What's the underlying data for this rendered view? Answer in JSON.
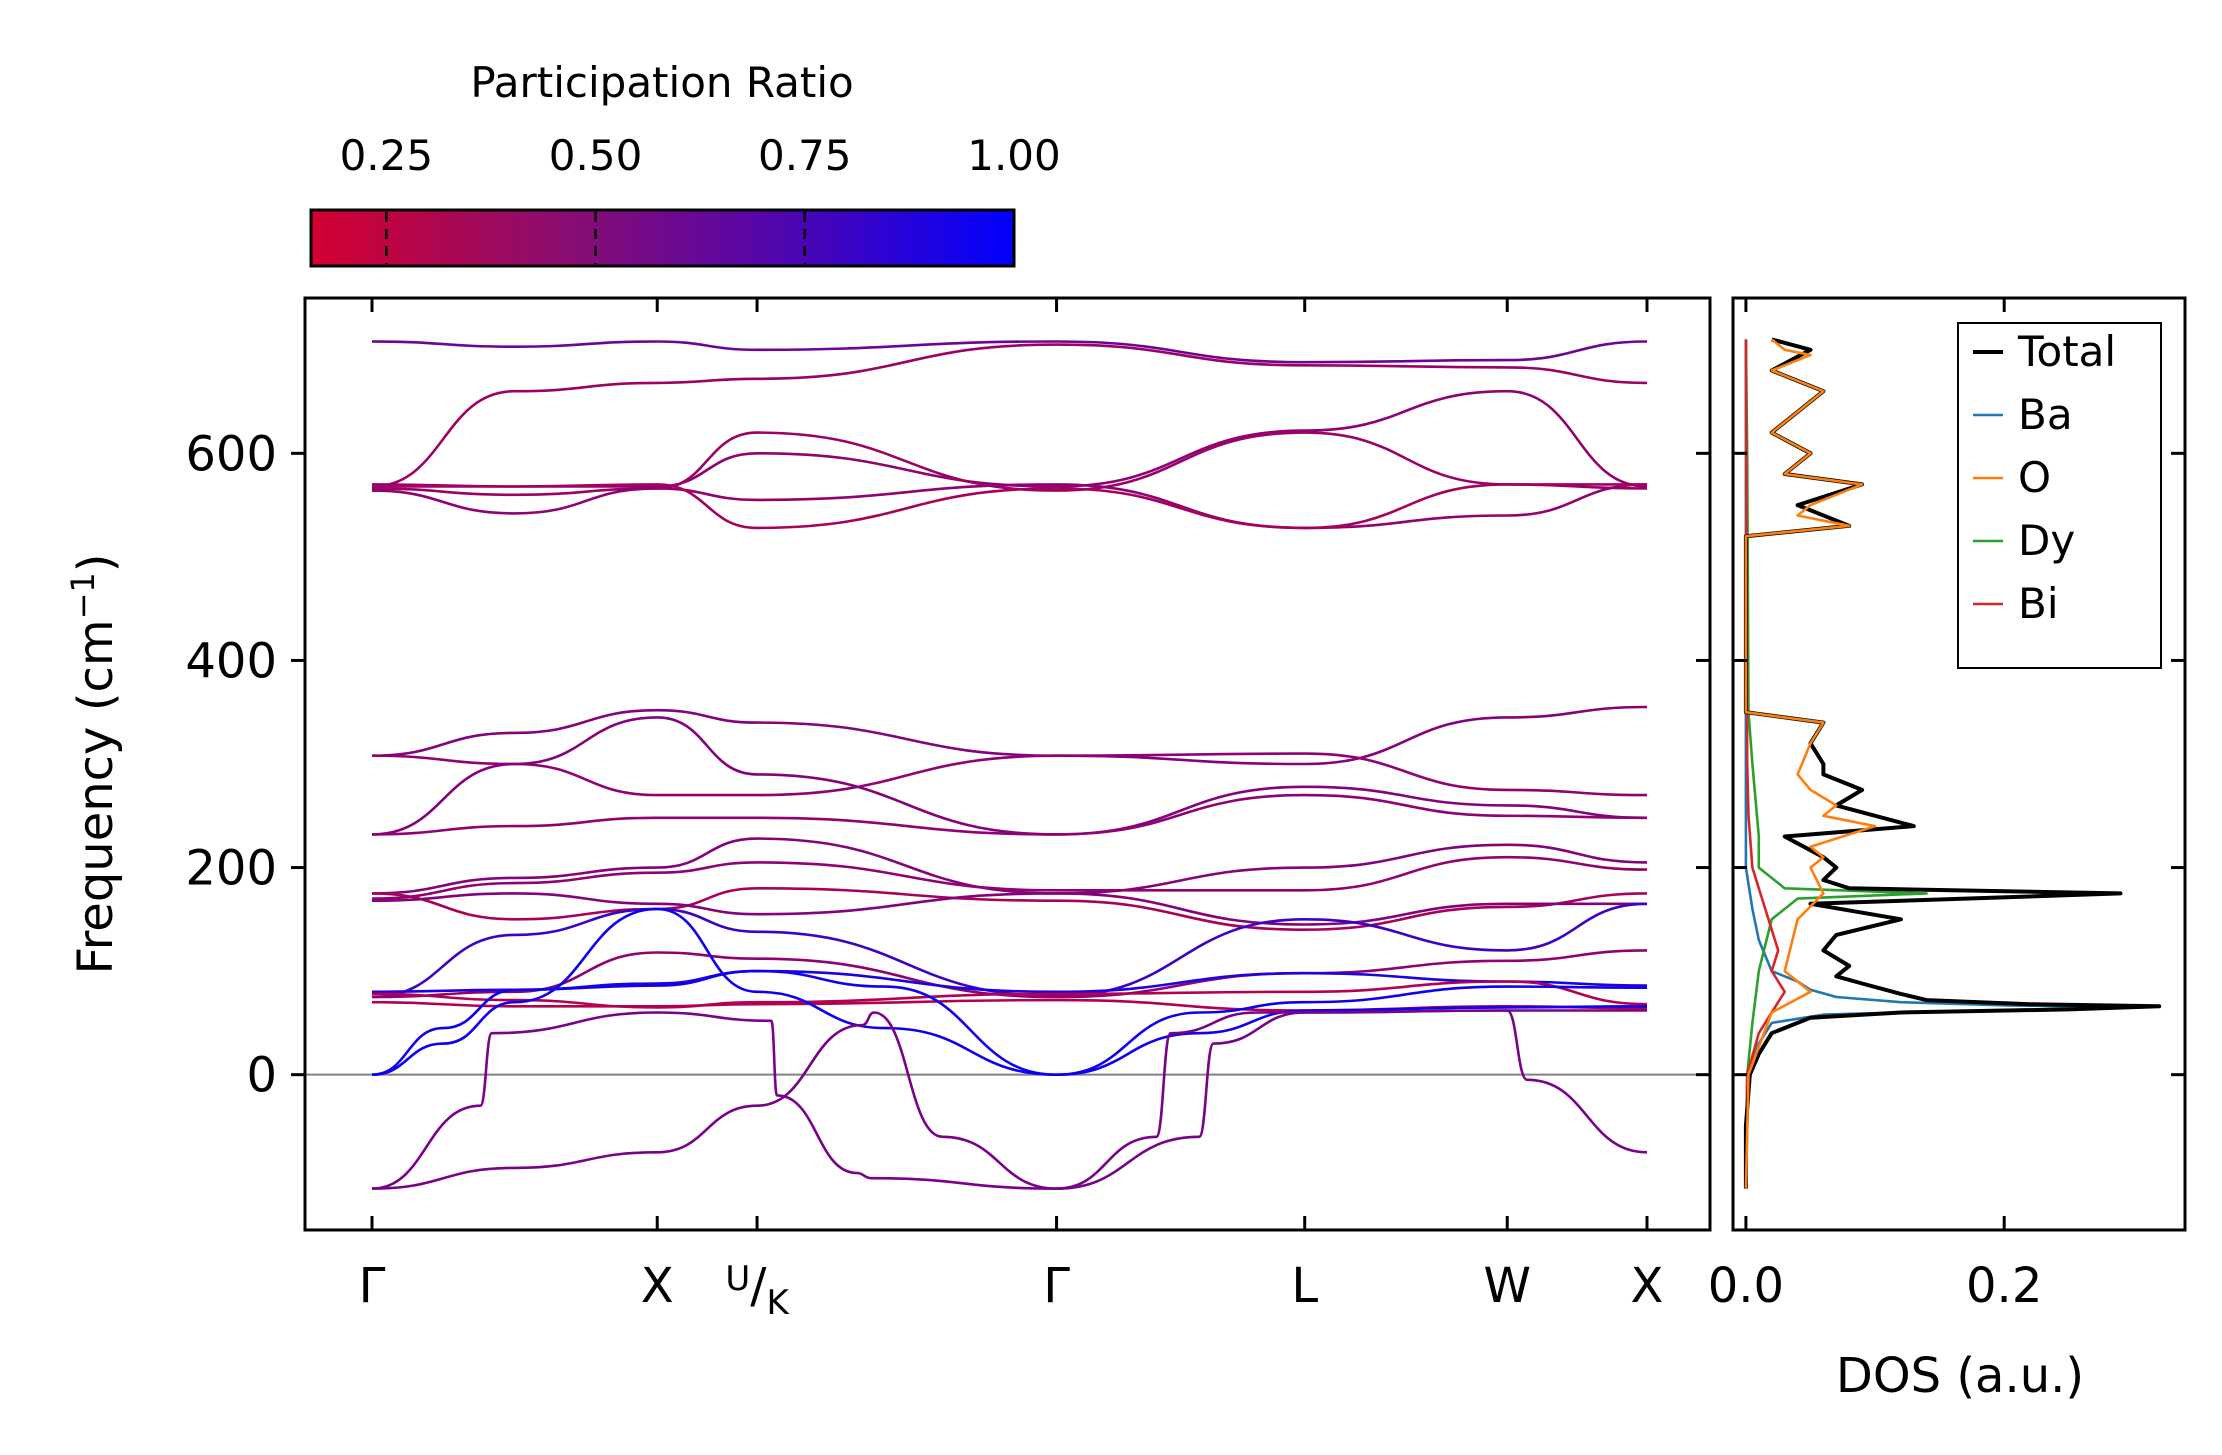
{
  "chart_data": [
    {
      "type": "line",
      "panel": "phonon-band-structure",
      "ylabel": "Frequency (cm",
      "ylabel_sup": "−1",
      "ylabel_close": ")",
      "ylim": [
        -150,
        750
      ],
      "yticks": [
        0,
        200,
        400,
        600
      ],
      "ytick_labels": [
        "0",
        "200",
        "400",
        "600"
      ],
      "xlim": [
        0,
        4.47
      ],
      "kpoint_positions": [
        0,
        1.0,
        1.35,
        2.4,
        3.27,
        3.98,
        4.47
      ],
      "kpoint_labels": [
        "Γ",
        "X",
        "U",
        "K",
        "Γ",
        "L",
        "W",
        "X"
      ],
      "kpoint_display": [
        {
          "pos": 0,
          "label": "Γ"
        },
        {
          "pos": 1.0,
          "label": "X"
        },
        {
          "pos": 1.35,
          "label": "U/K"
        },
        {
          "pos": 2.4,
          "label": "Γ"
        },
        {
          "pos": 3.27,
          "label": "L"
        },
        {
          "pos": 3.98,
          "label": "W"
        },
        {
          "pos": 4.47,
          "label": "X"
        }
      ],
      "colorbar": {
        "title": "Participation Ratio",
        "range": [
          0.16,
          1.0
        ],
        "ticks": [
          0.25,
          0.5,
          0.75,
          1.0
        ],
        "tick_labels": [
          "0.25",
          "0.50",
          "0.75",
          "1.00"
        ],
        "color_low": "#d40030",
        "color_high": "#0000ff"
      },
      "bands": [
        {
          "x": [
            0,
            0.5,
            1.0,
            1.35,
            2.4,
            3.27,
            3.98,
            4.47
          ],
          "y": [
            708,
            703,
            708,
            700,
            708,
            688,
            690,
            708
          ],
          "pr": 0.6
        },
        {
          "x": [
            0,
            0.5,
            1.0,
            1.35,
            2.4,
            3.27,
            3.98,
            4.47
          ],
          "y": [
            568,
            660,
            668,
            672,
            705,
            685,
            683,
            668
          ],
          "pr": 0.4
        },
        {
          "x": [
            0,
            0.5,
            1.0,
            1.35,
            2.4,
            3.27,
            3.98,
            4.47
          ],
          "y": [
            570,
            568,
            568,
            600,
            568,
            622,
            660,
            568
          ],
          "pr": 0.45
        },
        {
          "x": [
            0,
            0.5,
            1.0,
            1.35,
            2.4,
            3.27,
            3.98,
            4.47
          ],
          "y": [
            566,
            560,
            566,
            620,
            564,
            620,
            570,
            566
          ],
          "pr": 0.4
        },
        {
          "x": [
            0,
            0.5,
            1.0,
            1.35,
            2.4,
            3.27,
            3.98,
            4.47
          ],
          "y": [
            564,
            542,
            566,
            555,
            570,
            528,
            540,
            570
          ],
          "pr": 0.45
        },
        {
          "x": [
            0,
            0.5,
            1.0,
            1.35,
            2.4,
            3.27,
            3.98,
            4.47
          ],
          "y": [
            568,
            568,
            570,
            528,
            566,
            528,
            570,
            570
          ],
          "pr": 0.35
        },
        {
          "x": [
            0,
            0.5,
            1.0,
            1.35,
            2.4,
            3.27,
            3.98,
            4.47
          ],
          "y": [
            308,
            330,
            352,
            340,
            308,
            300,
            345,
            355
          ],
          "pr": 0.5
        },
        {
          "x": [
            0,
            0.5,
            1.0,
            1.35,
            2.4,
            3.27,
            3.98,
            4.47
          ],
          "y": [
            308,
            300,
            270,
            270,
            308,
            310,
            275,
            270
          ],
          "pr": 0.45
        },
        {
          "x": [
            0,
            0.5,
            1.0,
            1.35,
            2.4,
            3.27,
            3.98,
            4.47
          ],
          "y": [
            232,
            300,
            345,
            290,
            232,
            278,
            260,
            248
          ],
          "pr": 0.5
        },
        {
          "x": [
            0,
            0.5,
            1.0,
            1.35,
            2.4,
            3.27,
            3.98,
            4.47
          ],
          "y": [
            232,
            240,
            248,
            248,
            232,
            270,
            250,
            248
          ],
          "pr": 0.45
        },
        {
          "x": [
            0,
            0.5,
            1.0,
            1.35,
            2.4,
            3.27,
            3.98,
            4.47
          ],
          "y": [
            175,
            190,
            200,
            228,
            175,
            200,
            222,
            205
          ],
          "pr": 0.5
        },
        {
          "x": [
            0,
            0.5,
            1.0,
            1.35,
            2.4,
            3.27,
            3.98,
            4.47
          ],
          "y": [
            170,
            185,
            195,
            205,
            178,
            178,
            210,
            198
          ],
          "pr": 0.45
        },
        {
          "x": [
            0,
            0.5,
            1.0,
            1.35,
            2.4,
            3.27,
            3.98,
            4.47
          ],
          "y": [
            175,
            150,
            160,
            180,
            168,
            140,
            162,
            175
          ],
          "pr": 0.35
        },
        {
          "x": [
            0,
            0.5,
            1.0,
            1.35,
            2.4,
            3.27,
            3.98,
            4.47
          ],
          "y": [
            168,
            175,
            165,
            155,
            175,
            145,
            165,
            165
          ],
          "pr": 0.5
        },
        {
          "x": [
            0,
            0.5,
            1.0,
            1.35,
            2.4,
            3.27,
            3.98,
            4.47
          ],
          "y": [
            75,
            135,
            160,
            138,
            76,
            150,
            120,
            165
          ],
          "pr": 0.8
        },
        {
          "x": [
            0,
            0.5,
            1.0,
            1.35,
            2.4,
            3.27,
            3.98,
            4.47
          ],
          "y": [
            75,
            80,
            118,
            112,
            75,
            98,
            110,
            120
          ],
          "pr": 0.45
        },
        {
          "x": [
            0,
            0.5,
            1.0,
            1.35,
            2.4,
            3.27,
            3.98,
            4.47
          ],
          "y": [
            80,
            82,
            88,
            100,
            80,
            98,
            90,
            86
          ],
          "pr": 0.9
        },
        {
          "x": [
            0,
            0.5,
            1.0,
            1.35,
            2.4,
            3.27,
            3.98,
            4.47
          ],
          "y": [
            78,
            72,
            65,
            70,
            78,
            80,
            90,
            68
          ],
          "pr": 0.3
        },
        {
          "x": [
            0,
            0.5,
            1.0,
            1.35,
            2.4,
            3.27,
            3.98,
            4.47
          ],
          "y": [
            70,
            66,
            66,
            68,
            72,
            62,
            66,
            64
          ],
          "pr": 0.3
        },
        {
          "x": [
            0,
            0.25,
            0.5,
            1.0,
            1.35,
            1.8,
            2.4,
            2.9,
            3.27,
            3.98,
            4.47
          ],
          "y": [
            0,
            45,
            82,
            86,
            100,
            85,
            0,
            60,
            70,
            85,
            84
          ],
          "pr": 0.95
        },
        {
          "x": [
            0,
            0.25,
            0.5,
            1.0,
            1.35,
            1.8,
            2.4,
            2.9,
            3.27,
            3.98,
            4.47
          ],
          "y": [
            0,
            30,
            70,
            160,
            80,
            45,
            0,
            40,
            62,
            65,
            66
          ],
          "pr": 0.95
        },
        {
          "x": [
            0,
            0.38,
            0.42,
            1.0,
            1.4,
            1.42,
            1.7,
            1.75,
            2.4,
            2.9,
            2.95,
            3.27,
            3.98,
            4.05,
            4.47
          ],
          "y": [
            -110,
            -30,
            40,
            60,
            52,
            -20,
            -95,
            -100,
            -110,
            -60,
            30,
            60,
            62,
            -5,
            -75
          ],
          "pr": 0.55
        },
        {
          "x": [
            0,
            0.5,
            1.0,
            1.35,
            1.72,
            1.76,
            2.0,
            2.4,
            2.75,
            2.8,
            3.1,
            3.27,
            3.98,
            4.47
          ],
          "y": [
            -110,
            -90,
            -75,
            -30,
            48,
            60,
            -60,
            -110,
            -60,
            40,
            60,
            60,
            62,
            62
          ],
          "pr": 0.55
        }
      ]
    },
    {
      "type": "line",
      "panel": "density-of-states",
      "xlabel": "DOS (a.u.)",
      "xlim": [
        -0.01,
        0.34
      ],
      "xticks": [
        0.0,
        0.2
      ],
      "xtick_labels": [
        "0.0",
        "0.2"
      ],
      "ylim": [
        -150,
        750
      ],
      "legend_position": "top-right",
      "series": [
        {
          "name": "Total",
          "color": "#000000",
          "freq": [
            -110,
            -50,
            0,
            20,
            40,
            55,
            60,
            63,
            66,
            68,
            72,
            78,
            88,
            95,
            105,
            120,
            135,
            150,
            165,
            175,
            180,
            188,
            200,
            210,
            230,
            240,
            260,
            275,
            290,
            300,
            320,
            340,
            350,
            360,
            520,
            530,
            550,
            570,
            580,
            600,
            620,
            660,
            680,
            700,
            710
          ],
          "dos": [
            0.0,
            0.0,
            0.003,
            0.01,
            0.02,
            0.05,
            0.12,
            0.25,
            0.32,
            0.22,
            0.14,
            0.12,
            0.09,
            0.07,
            0.08,
            0.06,
            0.07,
            0.12,
            0.05,
            0.29,
            0.08,
            0.06,
            0.07,
            0.06,
            0.03,
            0.13,
            0.07,
            0.09,
            0.06,
            0.06,
            0.05,
            0.06,
            0.0,
            0.0,
            0.0,
            0.08,
            0.04,
            0.09,
            0.03,
            0.05,
            0.02,
            0.06,
            0.02,
            0.05,
            0.02
          ]
        },
        {
          "name": "Ba",
          "color": "#1f77b4",
          "freq": [
            -110,
            0,
            30,
            50,
            58,
            62,
            65,
            67,
            70,
            75,
            82,
            90,
            100,
            130,
            160,
            200,
            710
          ],
          "dos": [
            0.0,
            0.002,
            0.01,
            0.02,
            0.06,
            0.18,
            0.3,
            0.2,
            0.12,
            0.07,
            0.05,
            0.04,
            0.02,
            0.01,
            0.005,
            0.0,
            0.0
          ]
        },
        {
          "name": "O",
          "color": "#ff7f0e",
          "freq": [
            -110,
            0,
            60,
            80,
            100,
            150,
            175,
            200,
            210,
            220,
            240,
            250,
            260,
            275,
            290,
            320,
            340,
            350,
            360,
            520,
            530,
            540,
            550,
            570,
            580,
            600,
            620,
            660,
            680,
            695,
            700,
            710
          ],
          "dos": [
            0.0,
            0.002,
            0.02,
            0.05,
            0.03,
            0.04,
            0.06,
            0.05,
            0.06,
            0.05,
            0.1,
            0.06,
            0.07,
            0.05,
            0.04,
            0.05,
            0.06,
            0.0,
            0.0,
            0.0,
            0.08,
            0.04,
            0.05,
            0.09,
            0.03,
            0.05,
            0.02,
            0.06,
            0.02,
            0.05,
            0.03,
            0.02
          ]
        },
        {
          "name": "Dy",
          "color": "#2ca02c",
          "freq": [
            -110,
            0,
            50,
            100,
            150,
            170,
            175,
            180,
            200,
            230,
            300,
            350,
            600,
            710
          ],
          "dos": [
            0.0,
            0.001,
            0.005,
            0.01,
            0.02,
            0.04,
            0.14,
            0.03,
            0.01,
            0.01,
            0.005,
            0.002,
            0.001,
            0.0
          ]
        },
        {
          "name": "Bi",
          "color": "#d62728",
          "freq": [
            -110,
            0,
            40,
            60,
            80,
            100,
            120,
            140,
            160,
            180,
            200,
            250,
            300,
            710
          ],
          "dos": [
            0.0,
            0.001,
            0.01,
            0.02,
            0.03,
            0.02,
            0.025,
            0.02,
            0.015,
            0.01,
            0.005,
            0.002,
            0.001,
            0.0
          ]
        }
      ]
    }
  ]
}
